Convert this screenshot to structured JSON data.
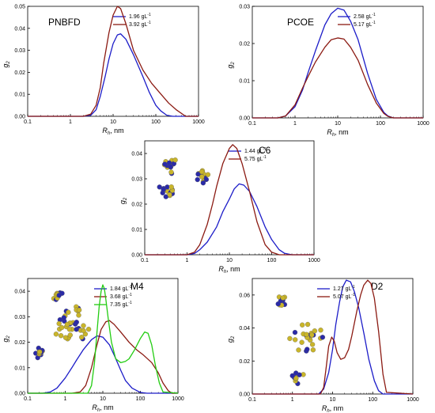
{
  "chart_data": [
    {
      "type": "line",
      "title": "PNBFD",
      "xlabel_main": "R",
      "xlabel_sub": "h",
      "xlabel_rest": ", nm",
      "ylabel_main": "g",
      "ylabel_sub": "2",
      "xscale": "log",
      "xlim": [
        0.1,
        1000
      ],
      "ylim": [
        0,
        0.05
      ],
      "xticks": [
        "0.1",
        "1",
        "10",
        "100",
        "1000"
      ],
      "xtick_values": [
        0.1,
        1,
        10,
        100,
        1000
      ],
      "yticks": [
        "0.00",
        "0.01",
        "0.02",
        "0.03",
        "0.04",
        "0.05"
      ],
      "ytick_values": [
        0,
        0.01,
        0.02,
        0.03,
        0.04,
        0.05
      ],
      "legend_position": "top-right",
      "series": [
        {
          "name": "1.96 gL",
          "sup": "-1",
          "color": "#1c1cc8",
          "x": [
            0.1,
            2.0,
            3.0,
            4.0,
            5.0,
            6.5,
            8.0,
            10,
            12.6,
            15,
            20,
            30,
            50,
            70,
            100,
            130,
            180,
            250,
            1000
          ],
          "y": [
            0,
            0,
            0.0005,
            0.003,
            0.009,
            0.018,
            0.026,
            0.033,
            0.037,
            0.0375,
            0.035,
            0.028,
            0.018,
            0.011,
            0.005,
            0.0025,
            0.0005,
            0,
            0
          ]
        },
        {
          "name": "3.92 gL",
          "sup": "-1",
          "color": "#8b1a12",
          "x": [
            0.1,
            2.0,
            3.0,
            4.0,
            5.0,
            6.0,
            8.0,
            10,
            12.6,
            15,
            20,
            30,
            50,
            80,
            120,
            200,
            300,
            500,
            1000
          ],
          "y": [
            0,
            0,
            0.001,
            0.005,
            0.013,
            0.024,
            0.038,
            0.046,
            0.05,
            0.049,
            0.042,
            0.03,
            0.021,
            0.015,
            0.011,
            0.006,
            0.003,
            0,
            0
          ]
        }
      ]
    },
    {
      "type": "line",
      "title": "PCOE",
      "xlabel_main": "R",
      "xlabel_sub": "h",
      "xlabel_rest": ", nm",
      "ylabel_main": "g",
      "ylabel_sub": "2",
      "xscale": "log",
      "xlim": [
        0.1,
        1000
      ],
      "ylim": [
        0,
        0.03
      ],
      "xticks": [
        "0.1",
        "1",
        "10",
        "100",
        "1000"
      ],
      "xtick_values": [
        0.1,
        1,
        10,
        100,
        1000
      ],
      "yticks": [
        "0.00",
        "0.01",
        "0.02",
        "0.03"
      ],
      "ytick_values": [
        0,
        0.01,
        0.02,
        0.03
      ],
      "legend_position": "top-right",
      "series": [
        {
          "name": "2.58 gL",
          "sup": "-1",
          "color": "#1c1cc8",
          "x": [
            0.1,
            0.4,
            0.6,
            1.0,
            1.5,
            2.0,
            3.0,
            5.0,
            7.0,
            10,
            14,
            20,
            30,
            50,
            80,
            120,
            150,
            200,
            1000
          ],
          "y": [
            0,
            0,
            0.0005,
            0.003,
            0.0075,
            0.012,
            0.018,
            0.025,
            0.028,
            0.0295,
            0.029,
            0.026,
            0.021,
            0.012,
            0.005,
            0.0015,
            0.0005,
            0,
            0
          ]
        },
        {
          "name": "5.17 gL",
          "sup": "-1",
          "color": "#8b1a12",
          "x": [
            0.1,
            0.4,
            0.6,
            1.0,
            1.5,
            2.0,
            3.0,
            5.0,
            7.0,
            10,
            14,
            20,
            30,
            50,
            80,
            120,
            150,
            200,
            1000
          ],
          "y": [
            0,
            0,
            0.0005,
            0.0035,
            0.008,
            0.011,
            0.015,
            0.019,
            0.021,
            0.0215,
            0.0212,
            0.019,
            0.0155,
            0.009,
            0.004,
            0.0012,
            0.0004,
            0,
            0
          ]
        }
      ]
    },
    {
      "type": "line",
      "title": "C6",
      "xlabel_main": "R",
      "xlabel_sub": "h",
      "xlabel_rest": ", nm",
      "ylabel_main": "g",
      "ylabel_sub": "2",
      "xscale": "log",
      "xlim": [
        0.1,
        1000
      ],
      "ylim": [
        0,
        0.045
      ],
      "xticks": [
        "0.1",
        "1",
        "10",
        "100",
        "1000"
      ],
      "xtick_values": [
        0.1,
        1,
        10,
        100,
        1000
      ],
      "yticks": [
        "0.00",
        "0.01",
        "0.02",
        "0.03",
        "0.04"
      ],
      "ytick_values": [
        0,
        0.01,
        0.02,
        0.03,
        0.04
      ],
      "legend_position": "top-right",
      "series": [
        {
          "name": "1.44 gL",
          "sup": "-1",
          "color": "#1c1cc8",
          "x": [
            0.1,
            1.0,
            1.5,
            2.0,
            3.0,
            5.0,
            7.0,
            10,
            13,
            17,
            22,
            30,
            45,
            70,
            100,
            150,
            200,
            300,
            1000
          ],
          "y": [
            0,
            0,
            0.0005,
            0.002,
            0.005,
            0.011,
            0.017,
            0.022,
            0.026,
            0.028,
            0.0275,
            0.025,
            0.019,
            0.011,
            0.006,
            0.002,
            0.0006,
            0,
            0
          ]
        },
        {
          "name": "5.75 gL",
          "sup": "-1",
          "color": "#8b1a12",
          "x": [
            0.1,
            1.0,
            1.5,
            2.0,
            3.0,
            4.0,
            5.0,
            7.0,
            10,
            12,
            15,
            20,
            30,
            45,
            70,
            100,
            150,
            1000
          ],
          "y": [
            0,
            0,
            0.001,
            0.004,
            0.012,
            0.02,
            0.027,
            0.036,
            0.042,
            0.0435,
            0.042,
            0.036,
            0.025,
            0.013,
            0.004,
            0.001,
            0,
            0
          ]
        }
      ]
    },
    {
      "type": "line",
      "title": "M4",
      "xlabel_main": "R",
      "xlabel_sub": "h",
      "xlabel_rest": ", nm",
      "ylabel_main": "g",
      "ylabel_sub": "2",
      "xscale": "log",
      "xlim": [
        0.1,
        1000
      ],
      "ylim": [
        0,
        0.045
      ],
      "xticks": [
        "0.1",
        "1",
        "10",
        "100",
        "1000"
      ],
      "xtick_values": [
        0.1,
        1,
        10,
        100,
        1000
      ],
      "yticks": [
        "0.00",
        "0.01",
        "0.02",
        "0.03",
        "0.04"
      ],
      "ytick_values": [
        0,
        0.01,
        0.02,
        0.03,
        0.04
      ],
      "legend_position": "top-right",
      "series": [
        {
          "name": "1.84 gL",
          "sup": "-1",
          "color": "#1c1cc8",
          "x": [
            0.1,
            0.25,
            0.4,
            0.6,
            1.0,
            1.5,
            2.0,
            3.0,
            5.0,
            7.0,
            10,
            15,
            20,
            30,
            40,
            60,
            100,
            150,
            1000
          ],
          "y": [
            0,
            0,
            0.0005,
            0.002,
            0.006,
            0.01,
            0.013,
            0.017,
            0.021,
            0.0225,
            0.022,
            0.019,
            0.015,
            0.009,
            0.005,
            0.002,
            0.0003,
            0,
            0
          ]
        },
        {
          "name": "3.68 gL",
          "sup": "-1",
          "color": "#8b1a12",
          "x": [
            0.1,
            1.5,
            2.5,
            3.5,
            5.0,
            7.0,
            9.0,
            12,
            15,
            20,
            30,
            50,
            80,
            120,
            200,
            300,
            400,
            550,
            700,
            1000
          ],
          "y": [
            0,
            0,
            0.0005,
            0.003,
            0.01,
            0.019,
            0.025,
            0.028,
            0.0285,
            0.027,
            0.024,
            0.02,
            0.017,
            0.015,
            0.012,
            0.008,
            0.004,
            0.001,
            0,
            0
          ]
        },
        {
          "name": "7.35 gL",
          "sup": "-1",
          "color": "#22cc11",
          "x": [
            0.1,
            4.0,
            5.0,
            6.0,
            7.0,
            8.0,
            9.0,
            10,
            11,
            12,
            14,
            17,
            22,
            30,
            40,
            50,
            70,
            100,
            130,
            160,
            200,
            250,
            320,
            400,
            1000
          ],
          "y": [
            0,
            0,
            0.003,
            0.012,
            0.024,
            0.034,
            0.04,
            0.0425,
            0.041,
            0.037,
            0.029,
            0.02,
            0.0135,
            0.012,
            0.0125,
            0.0135,
            0.017,
            0.0215,
            0.024,
            0.0235,
            0.019,
            0.011,
            0.004,
            0.0005,
            0
          ]
        }
      ]
    },
    {
      "type": "line",
      "title": "D2",
      "xlabel_main": "R",
      "xlabel_sub": "h",
      "xlabel_rest": ", nm",
      "ylabel_main": "g",
      "ylabel_sub": "2",
      "xscale": "log",
      "xlim": [
        0.1,
        1000
      ],
      "ylim": [
        0,
        0.07
      ],
      "xticks": [
        "0.1",
        "1",
        "10",
        "100",
        "1000"
      ],
      "xtick_values": [
        0.1,
        1,
        10,
        100,
        1000
      ],
      "yticks": [
        "0.00",
        "0.02",
        "0.04",
        "0.06"
      ],
      "ytick_values": [
        0,
        0.02,
        0.04,
        0.06
      ],
      "legend_position": "top-right",
      "series": [
        {
          "name": "1.27 gL",
          "sup": "-1",
          "color": "#1c1cc8",
          "x": [
            0.1,
            4.5,
            6.0,
            8.0,
            10,
            12,
            15,
            18,
            22,
            28,
            35,
            45,
            60,
            80,
            110,
            140,
            180,
            1000
          ],
          "y": [
            0,
            0,
            0.003,
            0.013,
            0.027,
            0.042,
            0.056,
            0.065,
            0.069,
            0.068,
            0.062,
            0.052,
            0.037,
            0.021,
            0.008,
            0.002,
            0,
            0
          ]
        },
        {
          "name": "5.07 gL",
          "sup": "-1",
          "color": "#8b1a12",
          "x": [
            0.1,
            5.0,
            6.0,
            7.0,
            8.0,
            9.5,
            11,
            13,
            16,
            20,
            25,
            30,
            40,
            50,
            60,
            75,
            90,
            110,
            140,
            180,
            220,
            1000
          ],
          "y": [
            0,
            0,
            0.004,
            0.017,
            0.029,
            0.0345,
            0.032,
            0.025,
            0.021,
            0.022,
            0.027,
            0.035,
            0.05,
            0.06,
            0.066,
            0.069,
            0.067,
            0.058,
            0.038,
            0.012,
            0.001,
            0
          ]
        }
      ]
    }
  ]
}
